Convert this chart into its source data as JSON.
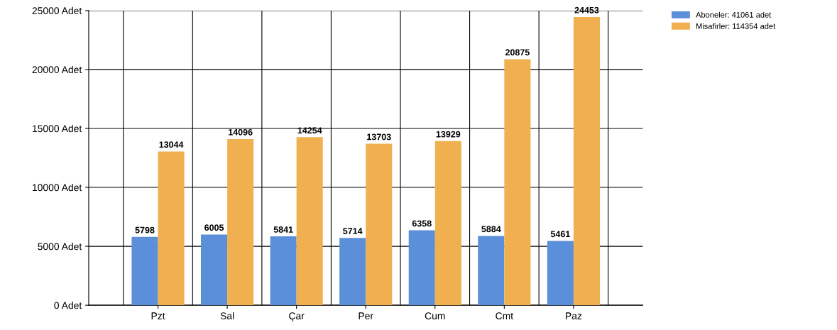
{
  "chart_data": {
    "type": "bar",
    "categories": [
      "Pzt",
      "Sal",
      "Çar",
      "Per",
      "Cum",
      "Cmt",
      "Paz"
    ],
    "series": [
      {
        "name": "Aboneler: 41061 adet",
        "color": "#5b8fd9",
        "values": [
          5798,
          6005,
          5841,
          5714,
          6358,
          5884,
          5461
        ]
      },
      {
        "name": "Misafirler: 114354 adet",
        "color": "#f0b050",
        "values": [
          13044,
          14096,
          14254,
          13703,
          13929,
          20875,
          24453
        ]
      }
    ],
    "ylim": [
      0,
      25000
    ],
    "yticks": [
      {
        "value": 0,
        "label": "0 Adet"
      },
      {
        "value": 5000,
        "label": "5000 Adet"
      },
      {
        "value": 10000,
        "label": "10000 Adet"
      },
      {
        "value": 15000,
        "label": "15000 Adet"
      },
      {
        "value": 20000,
        "label": "20000 Adet"
      },
      {
        "value": 25000,
        "label": "25000 Adet"
      }
    ],
    "grid": true,
    "data_labels": true,
    "legend": "top right"
  }
}
